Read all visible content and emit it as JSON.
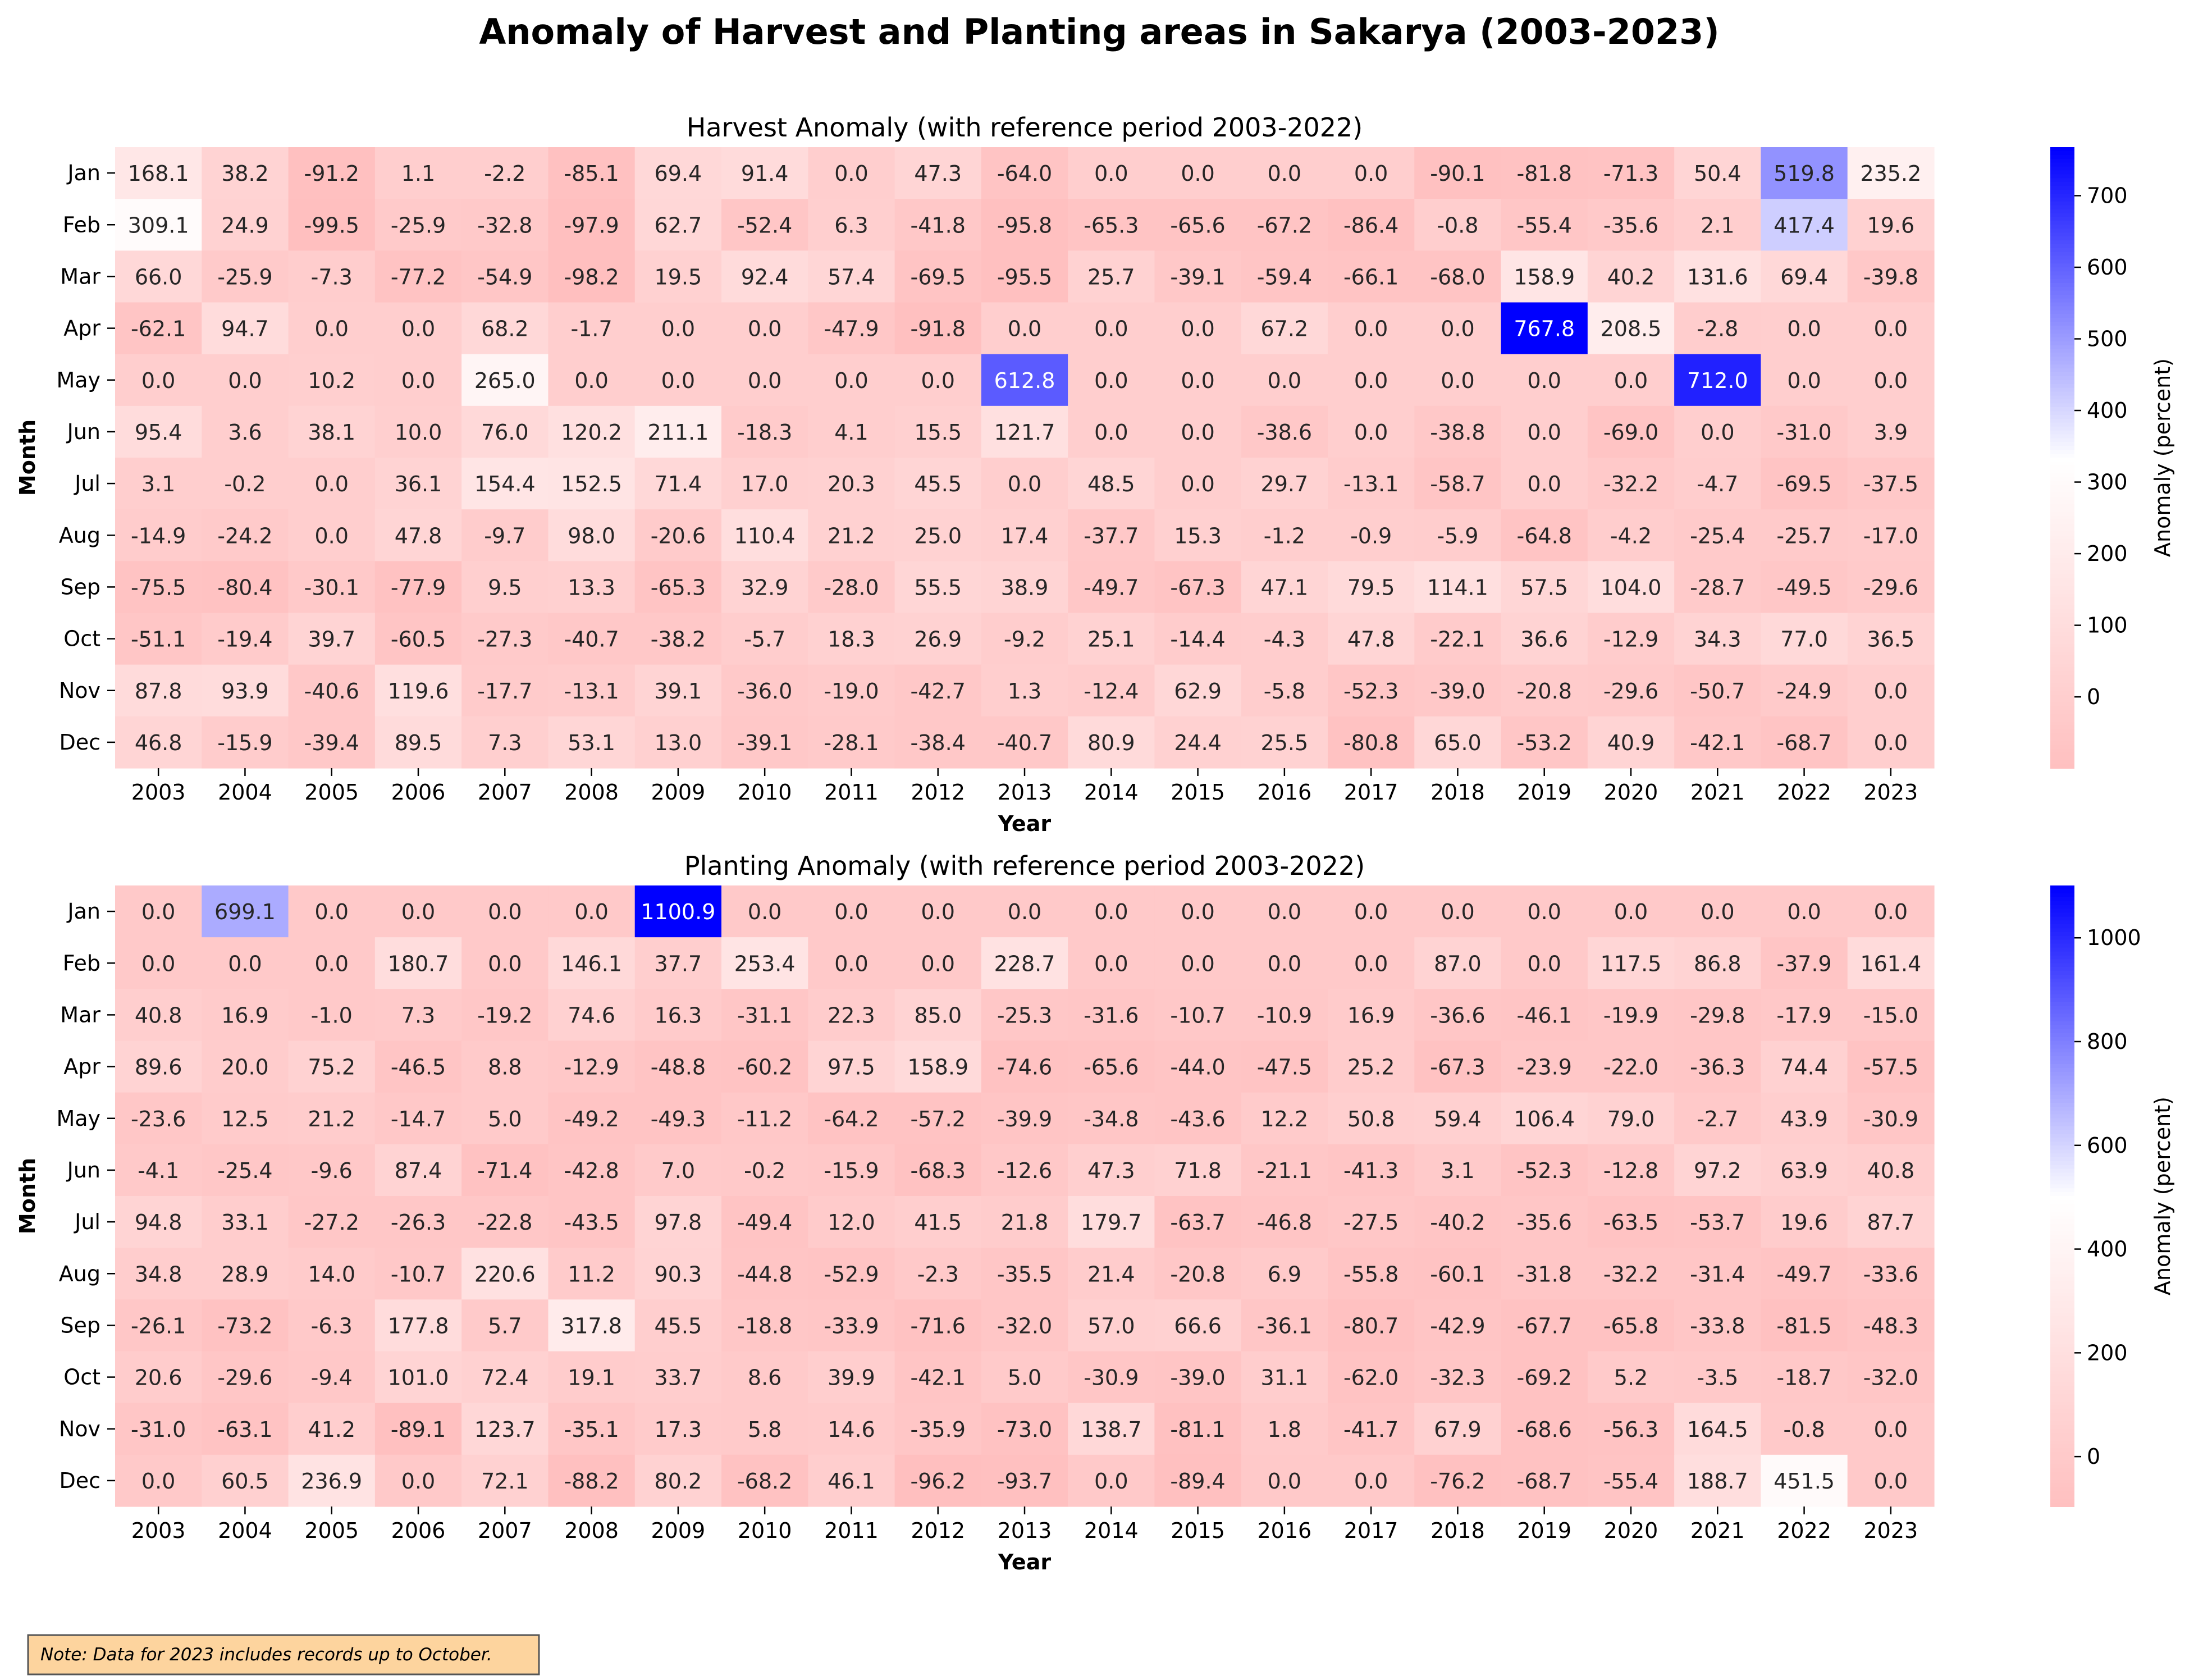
{
  "title": "Anomaly of Harvest and Planting areas in Sakarya (2003-2023)",
  "note": "Note: Data for 2023 includes records up to October.",
  "colors": {
    "negative": "#ff0000",
    "neutral": "#ffffff",
    "positive": "#0000ff",
    "note_bg": "#fdd49e",
    "note_border": "#555555"
  },
  "chart_data": [
    {
      "type": "heatmap",
      "title": "Harvest Anomaly (with reference period 2003-2022)",
      "xlabel": "Year",
      "ylabel": "Month",
      "colorbar_label": "Anomaly (percent)",
      "colorbar_ticks": [
        0,
        100,
        200,
        300,
        400,
        500,
        600,
        700
      ],
      "vmin": -99.5,
      "vmax": 767.8,
      "x": [
        "2003",
        "2004",
        "2005",
        "2006",
        "2007",
        "2008",
        "2009",
        "2010",
        "2011",
        "2012",
        "2013",
        "2014",
        "2015",
        "2016",
        "2017",
        "2018",
        "2019",
        "2020",
        "2021",
        "2022",
        "2023"
      ],
      "y": [
        "Jan",
        "Feb",
        "Mar",
        "Apr",
        "May",
        "Jun",
        "Jul",
        "Aug",
        "Sep",
        "Oct",
        "Nov",
        "Dec"
      ],
      "values": [
        [
          168.1,
          38.2,
          -91.2,
          1.1,
          -2.2,
          -85.1,
          69.4,
          91.4,
          0.0,
          47.3,
          -64.0,
          0.0,
          0.0,
          0.0,
          0.0,
          -90.1,
          -81.8,
          -71.3,
          50.4,
          519.8,
          235.2
        ],
        [
          309.1,
          24.9,
          -99.5,
          -25.9,
          -32.8,
          -97.9,
          62.7,
          -52.4,
          6.3,
          -41.8,
          -95.8,
          -65.3,
          -65.6,
          -67.2,
          -86.4,
          -0.8,
          -55.4,
          -35.6,
          2.1,
          417.4,
          19.6
        ],
        [
          66.0,
          -25.9,
          -7.3,
          -77.2,
          -54.9,
          -98.2,
          19.5,
          92.4,
          57.4,
          -69.5,
          -95.5,
          25.7,
          -39.1,
          -59.4,
          -66.1,
          -68.0,
          158.9,
          40.2,
          131.6,
          69.4,
          -39.8
        ],
        [
          -62.1,
          94.7,
          0.0,
          0.0,
          68.2,
          -1.7,
          0.0,
          0.0,
          -47.9,
          -91.8,
          0.0,
          0.0,
          0.0,
          67.2,
          0.0,
          0.0,
          767.8,
          208.5,
          -2.8,
          0.0,
          0.0
        ],
        [
          0.0,
          0.0,
          10.2,
          0.0,
          265.0,
          0.0,
          0.0,
          0.0,
          0.0,
          0.0,
          612.8,
          0.0,
          0.0,
          0.0,
          0.0,
          0.0,
          0.0,
          0.0,
          712.0,
          0.0,
          0.0
        ],
        [
          95.4,
          3.6,
          38.1,
          10.0,
          76.0,
          120.2,
          211.1,
          -18.3,
          4.1,
          15.5,
          121.7,
          0.0,
          0.0,
          -38.6,
          0.0,
          -38.8,
          0.0,
          -69.0,
          0.0,
          -31.0,
          3.9
        ],
        [
          3.1,
          -0.2,
          0.0,
          36.1,
          154.4,
          152.5,
          71.4,
          17.0,
          20.3,
          45.5,
          0.0,
          48.5,
          0.0,
          29.7,
          -13.1,
          -58.7,
          0.0,
          -32.2,
          -4.7,
          -69.5,
          -37.5
        ],
        [
          -14.9,
          -24.2,
          0.0,
          47.8,
          -9.7,
          98.0,
          -20.6,
          110.4,
          21.2,
          25.0,
          17.4,
          -37.7,
          15.3,
          -1.2,
          -0.9,
          -5.9,
          -64.8,
          -4.2,
          -25.4,
          -25.7,
          -17.0
        ],
        [
          -75.5,
          -80.4,
          -30.1,
          -77.9,
          9.5,
          13.3,
          -65.3,
          32.9,
          -28.0,
          55.5,
          38.9,
          -49.7,
          -67.3,
          47.1,
          79.5,
          114.1,
          57.5,
          104.0,
          -28.7,
          -49.5,
          -29.6
        ],
        [
          -51.1,
          -19.4,
          39.7,
          -60.5,
          -27.3,
          -40.7,
          -38.2,
          -5.7,
          18.3,
          26.9,
          -9.2,
          25.1,
          -14.4,
          -4.3,
          47.8,
          -22.1,
          36.6,
          -12.9,
          34.3,
          77.0,
          36.5
        ],
        [
          87.8,
          93.9,
          -40.6,
          119.6,
          -17.7,
          -13.1,
          39.1,
          -36.0,
          -19.0,
          -42.7,
          1.3,
          -12.4,
          62.9,
          -5.8,
          -52.3,
          -39.0,
          -20.8,
          -29.6,
          -50.7,
          -24.9,
          0.0
        ],
        [
          46.8,
          -15.9,
          -39.4,
          89.5,
          7.3,
          53.1,
          13.0,
          -39.1,
          -28.1,
          -38.4,
          -40.7,
          80.9,
          24.4,
          25.5,
          -80.8,
          65.0,
          -53.2,
          40.9,
          -42.1,
          -68.7,
          0.0
        ]
      ]
    },
    {
      "type": "heatmap",
      "title": "Planting Anomaly (with reference period 2003-2022)",
      "xlabel": "Year",
      "ylabel": "Month",
      "colorbar_label": "Anomaly (percent)",
      "colorbar_ticks": [
        0,
        200,
        400,
        600,
        800,
        1000
      ],
      "vmin": -96.2,
      "vmax": 1100.9,
      "x": [
        "2003",
        "2004",
        "2005",
        "2006",
        "2007",
        "2008",
        "2009",
        "2010",
        "2011",
        "2012",
        "2013",
        "2014",
        "2015",
        "2016",
        "2017",
        "2018",
        "2019",
        "2020",
        "2021",
        "2022",
        "2023"
      ],
      "y": [
        "Jan",
        "Feb",
        "Mar",
        "Apr",
        "May",
        "Jun",
        "Jul",
        "Aug",
        "Sep",
        "Oct",
        "Nov",
        "Dec"
      ],
      "values": [
        [
          0.0,
          699.1,
          0.0,
          0.0,
          0.0,
          0.0,
          1100.9,
          0.0,
          0.0,
          0.0,
          0.0,
          0.0,
          0.0,
          0.0,
          0.0,
          0.0,
          0.0,
          0.0,
          0.0,
          0.0,
          0.0
        ],
        [
          0.0,
          0.0,
          0.0,
          180.7,
          0.0,
          146.1,
          37.7,
          253.4,
          0.0,
          0.0,
          228.7,
          0.0,
          0.0,
          0.0,
          0.0,
          87.0,
          0.0,
          117.5,
          86.8,
          -37.9,
          161.4
        ],
        [
          40.8,
          16.9,
          -1.0,
          7.3,
          -19.2,
          74.6,
          16.3,
          -31.1,
          22.3,
          85.0,
          -25.3,
          -31.6,
          -10.7,
          -10.9,
          16.9,
          -36.6,
          -46.1,
          -19.9,
          -29.8,
          -17.9,
          -15.0
        ],
        [
          89.6,
          20.0,
          75.2,
          -46.5,
          8.8,
          -12.9,
          -48.8,
          -60.2,
          97.5,
          158.9,
          -74.6,
          -65.6,
          -44.0,
          -47.5,
          25.2,
          -67.3,
          -23.9,
          -22.0,
          -36.3,
          74.4,
          -57.5
        ],
        [
          -23.6,
          12.5,
          21.2,
          -14.7,
          5.0,
          -49.2,
          -49.3,
          -11.2,
          -64.2,
          -57.2,
          -39.9,
          -34.8,
          -43.6,
          12.2,
          50.8,
          59.4,
          106.4,
          79.0,
          -2.7,
          43.9,
          -30.9
        ],
        [
          -4.1,
          -25.4,
          -9.6,
          87.4,
          -71.4,
          -42.8,
          7.0,
          -0.2,
          -15.9,
          -68.3,
          -12.6,
          47.3,
          71.8,
          -21.1,
          -41.3,
          3.1,
          -52.3,
          -12.8,
          97.2,
          63.9,
          40.8
        ],
        [
          94.8,
          33.1,
          -27.2,
          -26.3,
          -22.8,
          -43.5,
          97.8,
          -49.4,
          12.0,
          41.5,
          21.8,
          179.7,
          -63.7,
          -46.8,
          -27.5,
          -40.2,
          -35.6,
          -63.5,
          -53.7,
          19.6,
          87.7
        ],
        [
          34.8,
          28.9,
          14.0,
          -10.7,
          220.6,
          11.2,
          90.3,
          -44.8,
          -52.9,
          -2.3,
          -35.5,
          21.4,
          -20.8,
          6.9,
          -55.8,
          -60.1,
          -31.8,
          -32.2,
          -31.4,
          -49.7,
          -33.6
        ],
        [
          -26.1,
          -73.2,
          -6.3,
          177.8,
          5.7,
          317.8,
          45.5,
          -18.8,
          -33.9,
          -71.6,
          -32.0,
          57.0,
          66.6,
          -36.1,
          -80.7,
          -42.9,
          -67.7,
          -65.8,
          -33.8,
          -81.5,
          -48.3
        ],
        [
          20.6,
          -29.6,
          -9.4,
          101.0,
          72.4,
          19.1,
          33.7,
          8.6,
          39.9,
          -42.1,
          5.0,
          -30.9,
          -39.0,
          31.1,
          -62.0,
          -32.3,
          -69.2,
          5.2,
          -3.5,
          -18.7,
          -32.0
        ],
        [
          -31.0,
          -63.1,
          41.2,
          -89.1,
          123.7,
          -35.1,
          17.3,
          5.8,
          14.6,
          -35.9,
          -73.0,
          138.7,
          -81.1,
          1.8,
          -41.7,
          67.9,
          -68.6,
          -56.3,
          164.5,
          -0.8,
          0.0
        ],
        [
          0.0,
          60.5,
          236.9,
          0.0,
          72.1,
          -88.2,
          80.2,
          -68.2,
          46.1,
          -96.2,
          -93.7,
          0.0,
          -89.4,
          0.0,
          0.0,
          -76.2,
          -68.7,
          -55.4,
          188.7,
          451.5,
          0.0
        ]
      ]
    }
  ]
}
